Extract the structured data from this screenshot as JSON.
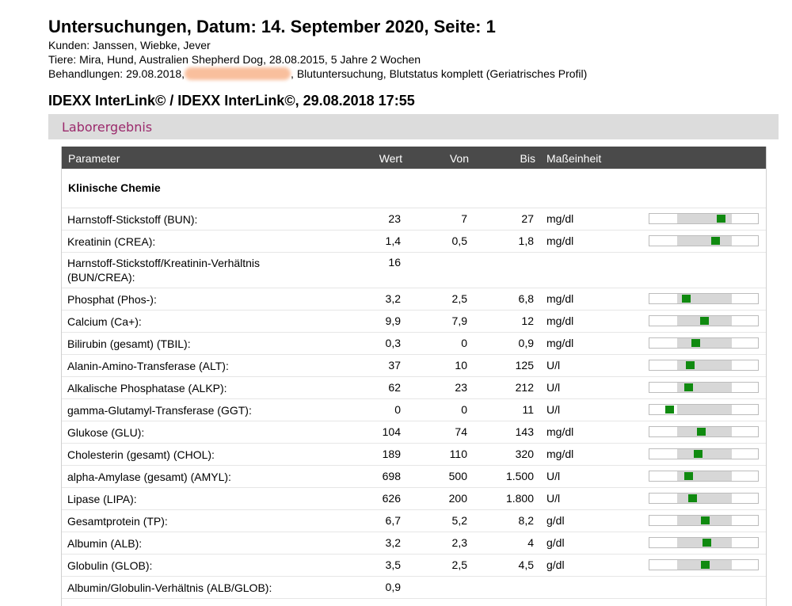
{
  "header": {
    "title": "Untersuchungen, Datum: 14. September 2020, Seite: 1",
    "kunden": "Kunden: Janssen, Wiebke, Jever",
    "tiere": "Tiere: Mira, Hund, Australien Shepherd Dog, 28.08.2015, 5 Jahre 2 Wochen",
    "behandlungen_prefix": "Behandlungen: 29.08.2018,",
    "behandlungen_suffix": ", Blutuntersuchung, Blutstatus komplett (Geriatrisches Profil)"
  },
  "subtitle": "IDEXX InterLink© / IDEXX InterLink©, 29.08.2018 17:55",
  "section": "Laborergebnis",
  "table": {
    "columns": [
      "Parameter",
      "Wert",
      "Von",
      "Bis",
      "Maßeinheit"
    ],
    "group": "Klinische Chemie",
    "rows": [
      {
        "name": "Harnstoff-Stickstoff (BUN):",
        "wert": "23",
        "von": "7",
        "bis": "27",
        "unit": "mg/dl",
        "pos": 0.8
      },
      {
        "name": "Kreatinin (CREA):",
        "wert": "1,4",
        "von": "0,5",
        "bis": "1,8",
        "unit": "mg/dl",
        "pos": 0.69
      },
      {
        "name": "Harnstoff-Stickstoff/Kreatinin-Verhältnis (BUN/CREA):",
        "wert": "16",
        "von": "",
        "bis": "",
        "unit": "",
        "pos": null
      },
      {
        "name": "Phosphat (Phos-):",
        "wert": "3,2",
        "von": "2,5",
        "bis": "6,8",
        "unit": "mg/dl",
        "pos": 0.16
      },
      {
        "name": "Calcium (Ca+):",
        "wert": "9,9",
        "von": "7,9",
        "bis": "12",
        "unit": "mg/dl",
        "pos": 0.49
      },
      {
        "name": "Bilirubin (gesamt) (TBIL):",
        "wert": "0,3",
        "von": "0",
        "bis": "0,9",
        "unit": "mg/dl",
        "pos": 0.33
      },
      {
        "name": "Alanin-Amino-Transferase (ALT):",
        "wert": "37",
        "von": "10",
        "bis": "125",
        "unit": "U/l",
        "pos": 0.23
      },
      {
        "name": "Alkalische Phosphatase (ALKP):",
        "wert": "62",
        "von": "23",
        "bis": "212",
        "unit": "U/l",
        "pos": 0.2
      },
      {
        "name": "gamma-Glutamyl-Transferase (GGT):",
        "wert": "0",
        "von": "0",
        "bis": "11",
        "unit": "U/l",
        "pos": -0.15
      },
      {
        "name": "Glukose (GLU):",
        "wert": "104",
        "von": "74",
        "bis": "143",
        "unit": "mg/dl",
        "pos": 0.43
      },
      {
        "name": "Cholesterin (gesamt) (CHOL):",
        "wert": "189",
        "von": "110",
        "bis": "320",
        "unit": "mg/dl",
        "pos": 0.38
      },
      {
        "name": "alpha-Amylase (gesamt) (AMYL):",
        "wert": "698",
        "von": "500",
        "bis": "1.500",
        "unit": "U/l",
        "pos": 0.2
      },
      {
        "name": "Lipase (LIPA):",
        "wert": "626",
        "von": "200",
        "bis": "1.800",
        "unit": "U/l",
        "pos": 0.27
      },
      {
        "name": "Gesamtprotein (TP):",
        "wert": "6,7",
        "von": "5,2",
        "bis": "8,2",
        "unit": "g/dl",
        "pos": 0.5
      },
      {
        "name": "Albumin (ALB):",
        "wert": "3,2",
        "von": "2,3",
        "bis": "4",
        "unit": "g/dl",
        "pos": 0.53
      },
      {
        "name": "Globulin (GLOB):",
        "wert": "3,5",
        "von": "2,5",
        "bis": "4,5",
        "unit": "g/dl",
        "pos": 0.5
      },
      {
        "name": "Albumin/Globulin-Verhältnis (ALB/GLOB):",
        "wert": "0,9",
        "von": "",
        "bis": "",
        "unit": "",
        "pos": null
      }
    ]
  },
  "colors": {
    "marker": "#108a10",
    "header_bg": "#4a4a4a",
    "section_text": "#9b2a6c"
  }
}
